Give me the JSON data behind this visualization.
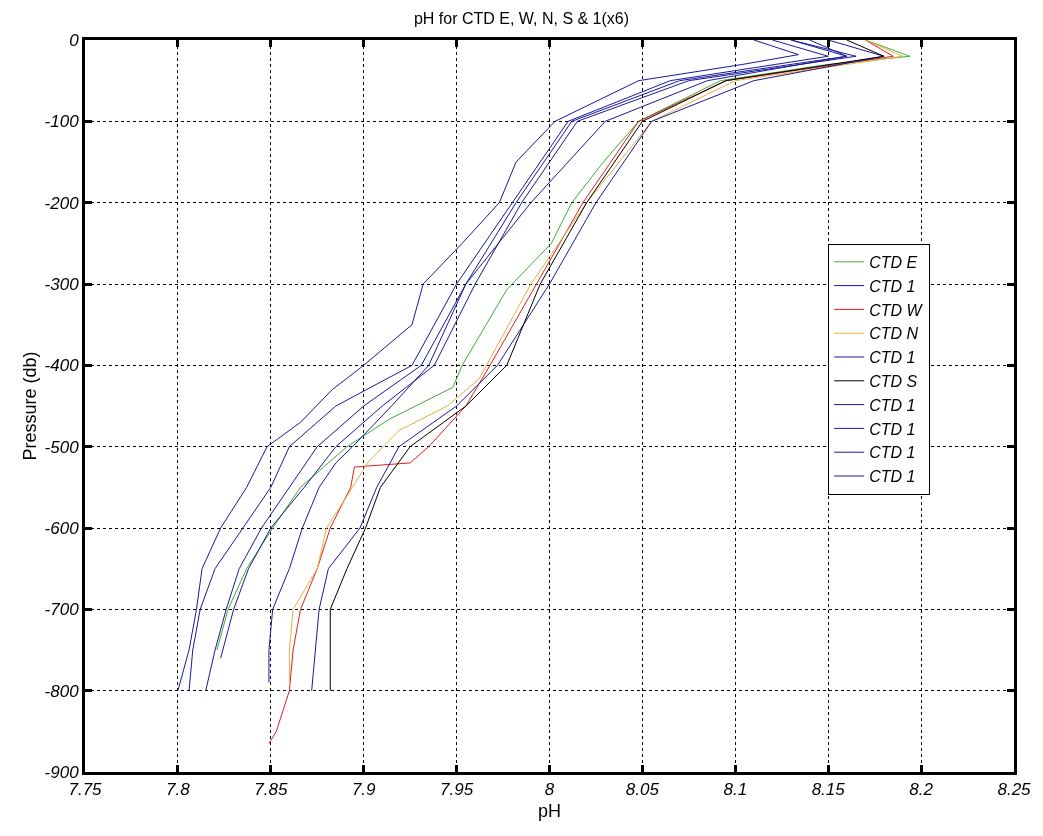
{
  "chart_data": {
    "type": "line",
    "title": "pH for CTD E, W, N, S & 1(x6)",
    "xlabel": "pH",
    "ylabel": "Pressure (db)",
    "xlim": [
      7.75,
      8.25
    ],
    "xticks": [
      7.75,
      7.8,
      7.85,
      7.9,
      7.95,
      8,
      8.05,
      8.1,
      8.15,
      8.2,
      8.25
    ],
    "ylim": [
      -900,
      0
    ],
    "yticks": [
      -900,
      -800,
      -700,
      -600,
      -500,
      -400,
      -300,
      -200,
      -100,
      0
    ],
    "grid": true,
    "legend": "right",
    "line_style": "solid",
    "marker": "none",
    "series": [
      {
        "name": "CTD E",
        "color": "#3cb034",
        "x": [
          8.17,
          8.194,
          8.15,
          8.092,
          8.048,
          8.029,
          8.012,
          8.001,
          7.977,
          7.953,
          7.948,
          7.914,
          7.891,
          7.866,
          7.851,
          7.837,
          7.827,
          7.821
        ],
        "values": [
          0,
          -20,
          -30,
          -50,
          -100,
          -150,
          -200,
          -250,
          -307,
          -400,
          -427,
          -466,
          -500,
          -550,
          -600,
          -650,
          -700,
          -750
        ]
      },
      {
        "name": "CTD 1",
        "color": "#1a1a9a",
        "x": [
          8.11,
          8.134,
          8.104,
          8.048,
          8.003,
          7.982,
          7.973,
          7.953,
          7.932,
          7.926,
          7.9,
          7.883,
          7.866,
          7.848,
          7.837,
          7.823,
          7.813,
          7.81,
          7.806,
          7.8
        ],
        "values": [
          0,
          -18,
          -30,
          -50,
          -100,
          -150,
          -200,
          -250,
          -300,
          -350,
          -400,
          -430,
          -470,
          -500,
          -550,
          -600,
          -650,
          -700,
          -750,
          -800
        ]
      },
      {
        "name": "CTD W",
        "color": "#e02020",
        "x": [
          8.17,
          8.185,
          8.095,
          8.048,
          8.018,
          7.993,
          7.968,
          7.955,
          7.935,
          7.925,
          7.895,
          7.893,
          7.882,
          7.875,
          7.866,
          7.862,
          7.86,
          7.853,
          7.849
        ],
        "values": [
          0,
          -20,
          -50,
          -100,
          -200,
          -300,
          -400,
          -450,
          -500,
          -520,
          -525,
          -550,
          -600,
          -650,
          -700,
          -750,
          -800,
          -850,
          -865
        ]
      },
      {
        "name": "CTD N",
        "color": "#e8b040",
        "x": [
          8.17,
          8.19,
          8.1,
          8.055,
          8.02,
          7.99,
          7.962,
          7.945,
          7.919,
          7.902,
          7.894,
          7.88,
          7.875,
          7.862,
          7.86,
          7.86
        ],
        "values": [
          0,
          -20,
          -50,
          -100,
          -200,
          -300,
          -417,
          -450,
          -480,
          -520,
          -550,
          -600,
          -650,
          -700,
          -750,
          -790
        ]
      },
      {
        "name": "CTD 1",
        "color": "#1a1a9a",
        "x": [
          8.15,
          8.18,
          8.11,
          8.055,
          8.025,
          8,
          7.972,
          7.95,
          7.919,
          7.907,
          7.898,
          7.881,
          7.876,
          7.874,
          7.872
        ],
        "values": [
          0,
          -20,
          -50,
          -100,
          -200,
          -300,
          -400,
          -450,
          -500,
          -550,
          -600,
          -650,
          -700,
          -750,
          -800
        ]
      },
      {
        "name": "CTD S",
        "color": "#000000",
        "x": [
          8.16,
          8.18,
          8.095,
          8.05,
          8.02,
          7.995,
          7.977,
          7.955,
          7.925,
          7.909,
          7.901,
          7.891,
          7.882,
          7.882,
          7.882
        ],
        "values": [
          0,
          -20,
          -50,
          -100,
          -200,
          -300,
          -400,
          -450,
          -500,
          -550,
          -600,
          -650,
          -700,
          -750,
          -800
        ]
      },
      {
        "name": "CTD 1",
        "color": "#1a1a9a",
        "x": [
          8.14,
          8.16,
          8.085,
          8.03,
          7.99,
          7.955,
          7.935,
          7.915,
          7.894,
          7.885,
          7.876,
          7.867,
          7.86,
          7.851,
          7.849,
          7.849
        ],
        "values": [
          0,
          -20,
          -50,
          -100,
          -200,
          -300,
          -400,
          -450,
          -500,
          -520,
          -550,
          -600,
          -650,
          -700,
          -750,
          -790
        ]
      },
      {
        "name": "CTD 1",
        "color": "#1a1a9a",
        "x": [
          8.12,
          8.15,
          8.065,
          8.01,
          7.98,
          7.95,
          7.926,
          7.885,
          7.86,
          7.85,
          7.835,
          7.82,
          7.812,
          7.808,
          7.806
        ],
        "values": [
          0,
          -20,
          -50,
          -100,
          -200,
          -300,
          -400,
          -450,
          -500,
          -550,
          -600,
          -650,
          -700,
          -750,
          -800
        ]
      },
      {
        "name": "CTD 1",
        "color": "#1a1a9a",
        "x": [
          8.13,
          8.16,
          8.07,
          8.012,
          7.982,
          7.955,
          7.931,
          7.9,
          7.875,
          7.86,
          7.845,
          7.833,
          7.826,
          7.82,
          7.815
        ],
        "values": [
          0,
          -20,
          -50,
          -100,
          -200,
          -300,
          -400,
          -450,
          -500,
          -550,
          -600,
          -650,
          -700,
          -750,
          -800
        ]
      },
      {
        "name": "CTD 1",
        "color": "#1a1a9a",
        "x": [
          8.13,
          8.165,
          8.075,
          8.015,
          7.985,
          7.96,
          7.938,
          7.91,
          7.885,
          7.868,
          7.85,
          7.838,
          7.83,
          7.823
        ],
        "values": [
          0,
          -20,
          -50,
          -100,
          -200,
          -300,
          -400,
          -450,
          -500,
          -550,
          -600,
          -650,
          -700,
          -760
        ]
      }
    ]
  }
}
